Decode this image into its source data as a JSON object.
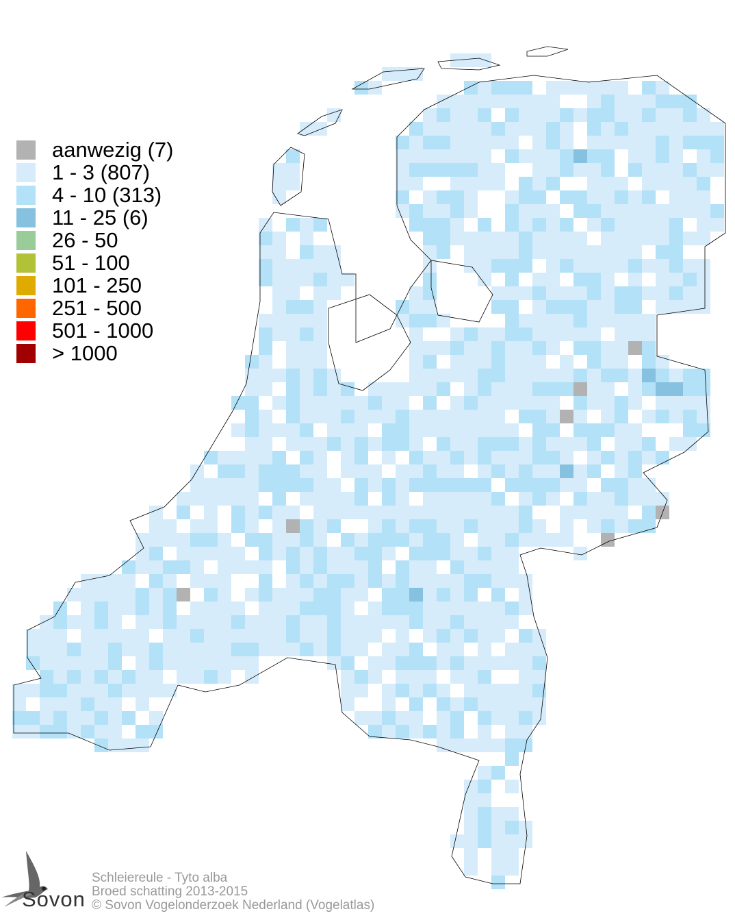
{
  "legend": {
    "items": [
      {
        "label": "aanwezig (7)",
        "color": "#b2b2b2"
      },
      {
        "label": "1 - 3 (807)",
        "color": "#d6ecfa"
      },
      {
        "label": "4 - 10 (313)",
        "color": "#b3e1f7"
      },
      {
        "label": "11 - 25 (6)",
        "color": "#86c2df"
      },
      {
        "label": "26 - 50",
        "color": "#99cc99"
      },
      {
        "label": "51 - 100",
        "color": "#b2c236"
      },
      {
        "label": "101 - 250",
        "color": "#e0ab00"
      },
      {
        "label": "251 - 500",
        "color": "#ff6600"
      },
      {
        "label": "501 - 1000",
        "color": "#ff0000"
      },
      {
        "label": "> 1000",
        "color": "#a00000"
      }
    ]
  },
  "caption": {
    "species": "Schleiereule - Tyto alba",
    "survey": "Broed schatting 2013-2015",
    "copyright": "© Sovon Vogelonderzoek Nederland (Vogelatlas)"
  },
  "logo": {
    "text": "Sovon"
  }
}
